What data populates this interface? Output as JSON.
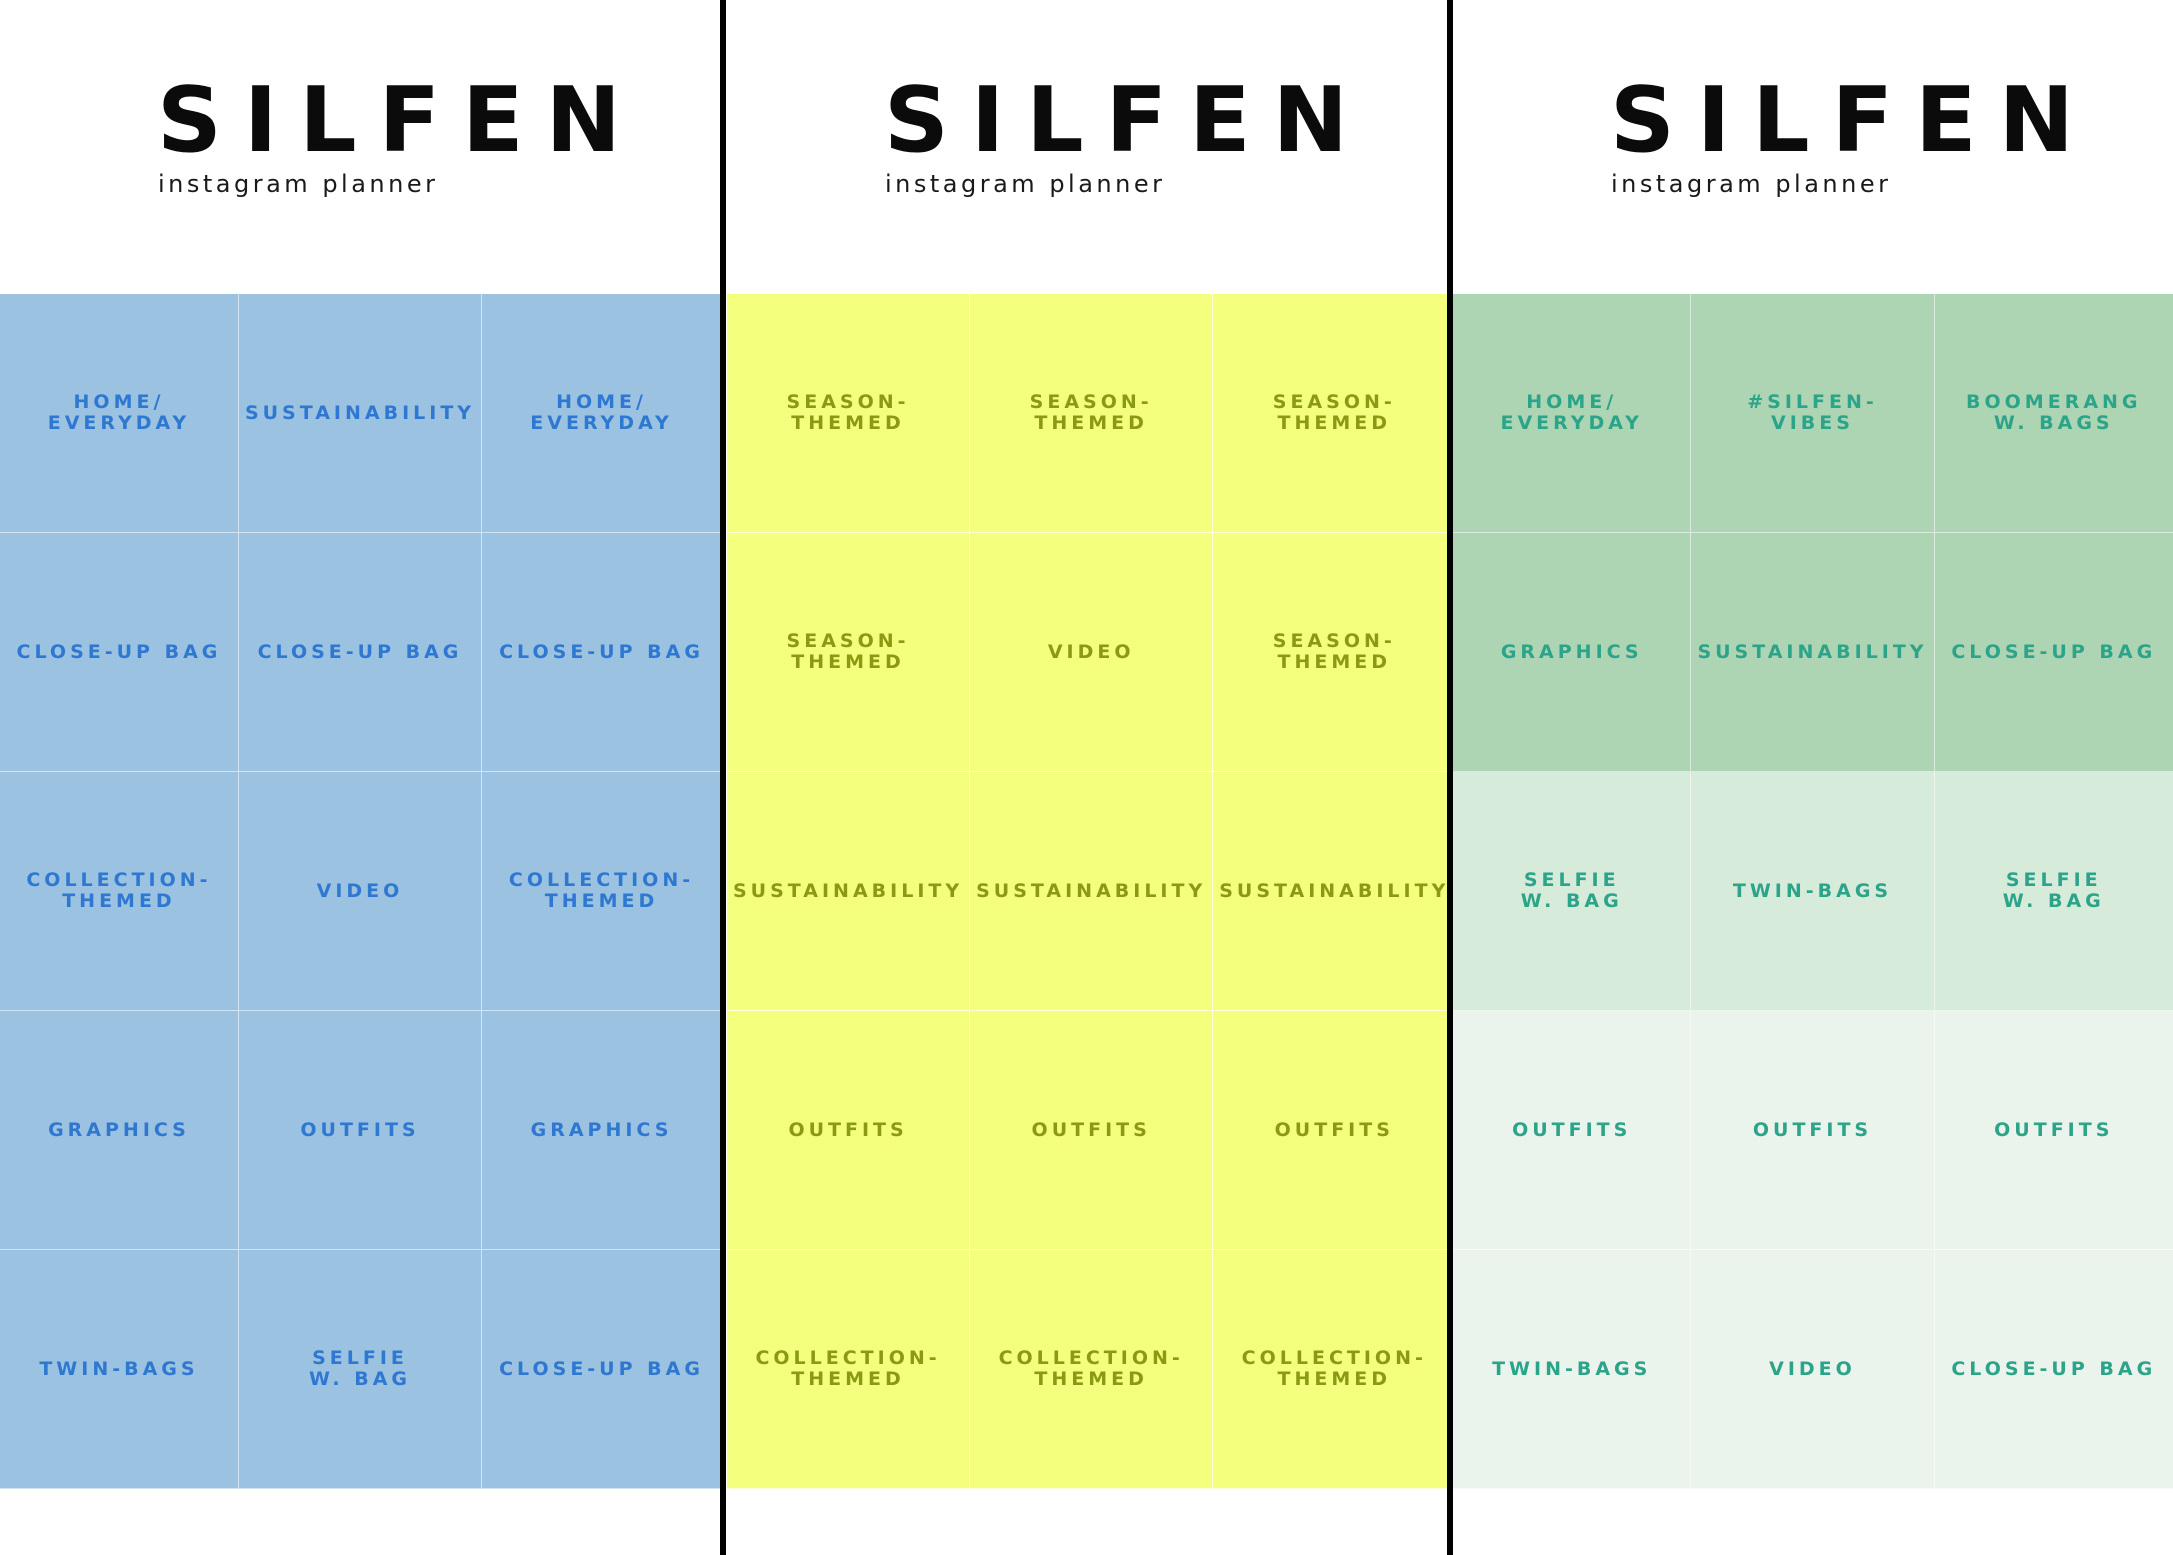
{
  "panels": [
    {
      "brand": "SILFEN",
      "subtitle": "instagram planner",
      "cells": [
        "HOME/\nEVERYDAY",
        "SUSTAINABILITY",
        "HOME/\nEVERYDAY",
        "CLOSE-UP BAG",
        "CLOSE-UP BAG",
        "CLOSE-UP BAG",
        "COLLECTION-\nTHEMED",
        "VIDEO",
        "COLLECTION-\nTHEMED",
        "GRAPHICS",
        "OUTFITS",
        "GRAPHICS",
        "TWIN-BAGS",
        "SELFIE\nW. BAG",
        "CLOSE-UP BAG"
      ]
    },
    {
      "brand": "SILFEN",
      "subtitle": "instagram planner",
      "cells": [
        "SEASON-\nTHEMED",
        "SEASON-\nTHEMED",
        "SEASON-\nTHEMED",
        "SEASON-\nTHEMED",
        "VIDEO",
        "SEASON-\nTHEMED",
        "SUSTAINABILITY",
        "SUSTAINABILITY",
        "SUSTAINABILITY",
        "OUTFITS",
        "OUTFITS",
        "OUTFITS",
        "COLLECTION-\nTHEMED",
        "COLLECTION-\nTHEMED",
        "COLLECTION-\nTHEMED"
      ]
    },
    {
      "brand": "SILFEN",
      "subtitle": "instagram planner",
      "cells": [
        "HOME/\nEVERYDAY",
        "#SILFEN-\nVIBES",
        "BOOMERANG\nW. BAGS",
        "GRAPHICS",
        "SUSTAINABILITY",
        "CLOSE-UP BAG",
        "SELFIE\nW. BAG",
        "TWIN-BAGS",
        "SELFIE\nW. BAG",
        "OUTFITS",
        "OUTFITS",
        "OUTFITS",
        "TWIN-BAGS",
        "VIDEO",
        "CLOSE-UP BAG"
      ]
    }
  ],
  "colors": {
    "blue_tile": "#9bc2e0",
    "blue_text": "#2f78d2",
    "yellow_tile": "#f4ff7d",
    "yellow_text": "#8a9a12",
    "green_tile_dark": "#add5b3",
    "green_tile_mid": "#d6ebd9",
    "green_tile_light": "#ebf4ec",
    "green_text": "#2ba48a",
    "divider": "#000000"
  }
}
